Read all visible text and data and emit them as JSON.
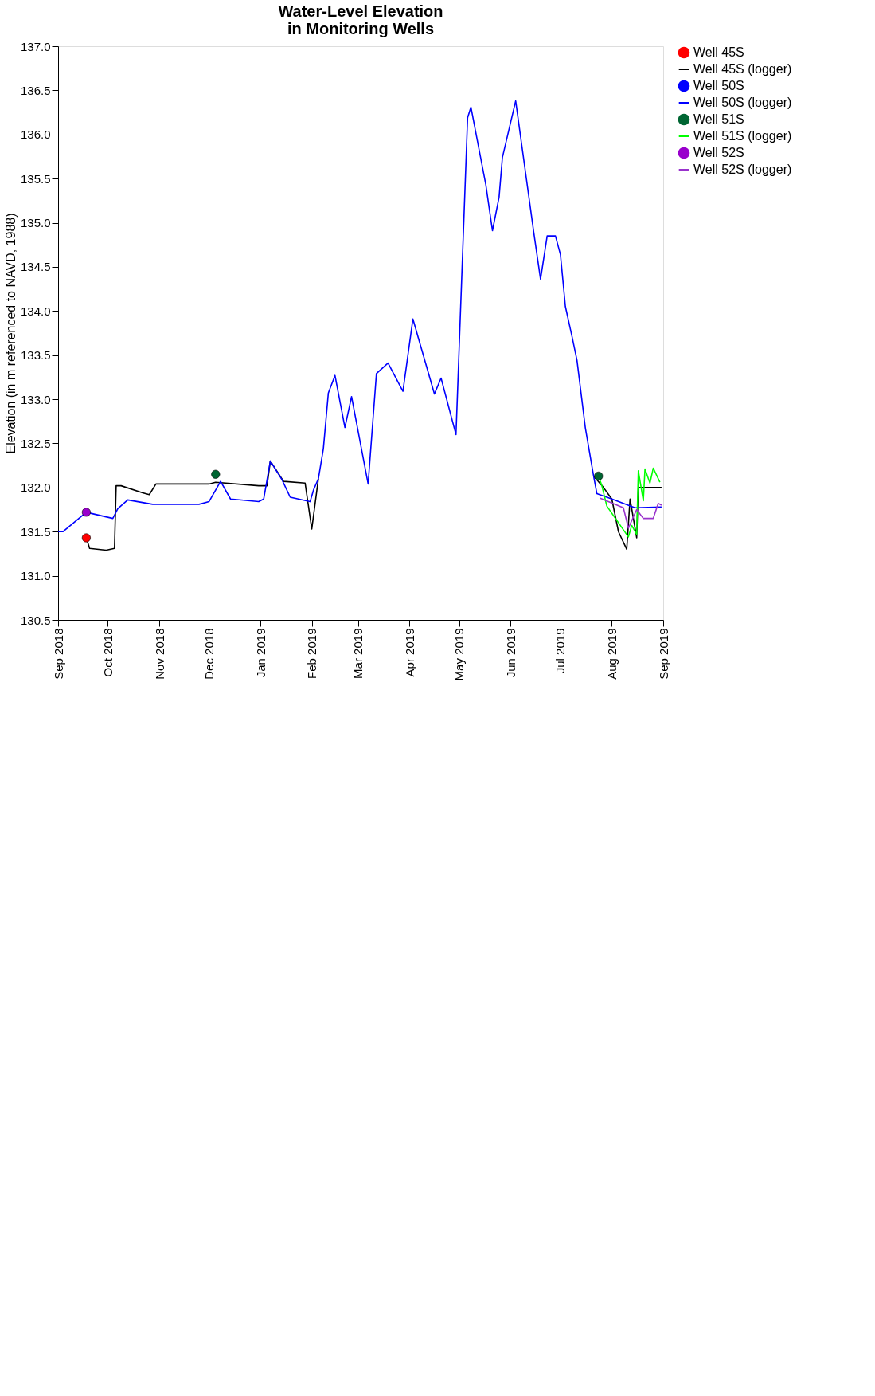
{
  "chart_data": {
    "type": "line",
    "title": "Water-Level Elevation\nin Monitoring Wells",
    "ylabel": "Elevation (in m referenced to NAVD, 1988)",
    "xlim": [
      "2018-09-01",
      "2019-09-01"
    ],
    "xticks": [
      {
        "value": "2018-09-01",
        "label": "Sep 2018"
      },
      {
        "value": "2018-10-01",
        "label": "Oct 2018"
      },
      {
        "value": "2018-11-01",
        "label": "Nov 2018"
      },
      {
        "value": "2018-12-01",
        "label": "Dec 2018"
      },
      {
        "value": "2019-01-01",
        "label": "Jan 2019"
      },
      {
        "value": "2019-02-01",
        "label": "Feb 2019"
      },
      {
        "value": "2019-03-01",
        "label": "Mar 2019"
      },
      {
        "value": "2019-04-01",
        "label": "Apr 2019"
      },
      {
        "value": "2019-05-01",
        "label": "May 2019"
      },
      {
        "value": "2019-06-01",
        "label": "Jun 2019"
      },
      {
        "value": "2019-07-01",
        "label": "Jul 2019"
      },
      {
        "value": "2019-08-01",
        "label": "Aug 2019"
      },
      {
        "value": "2019-09-01",
        "label": "Sep 2019"
      }
    ],
    "ylim": [
      130.5,
      137.0
    ],
    "yticks": [
      {
        "value": 130.5,
        "label": "130.5"
      },
      {
        "value": 131.0,
        "label": "131.0"
      },
      {
        "value": 131.5,
        "label": "131.5"
      },
      {
        "value": 132.0,
        "label": "132.0"
      },
      {
        "value": 132.5,
        "label": "132.5"
      },
      {
        "value": 133.0,
        "label": "133.0"
      },
      {
        "value": 133.5,
        "label": "133.5"
      },
      {
        "value": 134.0,
        "label": "134.0"
      },
      {
        "value": 134.5,
        "label": "134.5"
      },
      {
        "value": 135.0,
        "label": "135.0"
      },
      {
        "value": 135.5,
        "label": "135.5"
      },
      {
        "value": 136.0,
        "label": "136.0"
      },
      {
        "value": 136.5,
        "label": "136.5"
      },
      {
        "value": 137.0,
        "label": "137.0"
      }
    ],
    "grid": false,
    "legend": "right",
    "line_style": "solid",
    "series": [
      {
        "name": "Well 45S",
        "type": "scatter",
        "marker": "circle",
        "color": "#ff0000",
        "x": [
          "2018-09-18"
        ],
        "values": [
          131.43
        ]
      },
      {
        "name": "Well 45S (logger)",
        "type": "line",
        "color": "#000000",
        "x": [
          "2018-09-18",
          "2018-09-20",
          "2018-09-30",
          "2018-10-05",
          "2018-10-06",
          "2018-10-09",
          "2018-10-22",
          "2018-10-26",
          "2018-10-30",
          "2018-12-01",
          "2018-12-05",
          "2018-12-31",
          "2019-01-05",
          "2019-01-07",
          "2019-01-15",
          "2019-01-28",
          "2019-02-01",
          "2019-02-05",
          "2019-02-08",
          "2019-02-11",
          "2019-02-15",
          "2019-02-21",
          "2019-02-25",
          "2019-03-07",
          "2019-03-12",
          "2019-03-19",
          "2019-03-28",
          "2019-04-03",
          "2019-04-16",
          "2019-04-20",
          "2019-04-29",
          "2019-05-06",
          "2019-05-08",
          "2019-05-17",
          "2019-05-21",
          "2019-05-25",
          "2019-05-27",
          "2019-06-04",
          "2019-06-15",
          "2019-06-19",
          "2019-06-23",
          "2019-06-28",
          "2019-07-01",
          "2019-07-04",
          "2019-07-08",
          "2019-07-11",
          "2019-07-16",
          "2019-07-21",
          "2019-07-27",
          "2019-08-01",
          "2019-08-05",
          "2019-08-10",
          "2019-08-12",
          "2019-08-16",
          "2019-08-17",
          "2019-08-31"
        ],
        "values": [
          131.43,
          131.31,
          131.29,
          131.31,
          132.02,
          132.02,
          131.94,
          131.92,
          132.04,
          132.04,
          132.06,
          132.02,
          132.02,
          132.3,
          132.07,
          132.05,
          131.53,
          132.1,
          null,
          null,
          null,
          null,
          null,
          null,
          null,
          null,
          null,
          null,
          null,
          null,
          null,
          null,
          null,
          null,
          null,
          null,
          null,
          null,
          null,
          null,
          null,
          null,
          null,
          null,
          null,
          null,
          null,
          132.13,
          132.0,
          131.87,
          131.5,
          131.3,
          131.87,
          131.43,
          132.0,
          132.0
        ]
      },
      {
        "name": "Well 50S",
        "type": "scatter",
        "marker": "circle",
        "color": "#0000ff"
      },
      {
        "name": "Well 50S (logger)",
        "type": "line",
        "color": "#0000ff",
        "x": [
          "2018-09-01",
          "2018-09-04",
          "2018-09-18",
          "2018-10-04",
          "2018-10-07",
          "2018-10-13",
          "2018-10-28",
          "2018-11-25",
          "2018-12-01",
          "2018-12-08",
          "2018-12-14",
          "2018-12-31",
          "2019-01-03",
          "2019-01-07",
          "2019-01-14",
          "2019-01-19",
          "2019-01-31",
          "2019-02-02",
          "2019-02-05",
          "2019-02-08",
          "2019-02-11",
          "2019-02-15",
          "2019-02-21",
          "2019-02-25",
          "2019-03-07",
          "2019-03-12",
          "2019-03-19",
          "2019-03-28",
          "2019-04-03",
          "2019-04-16",
          "2019-04-20",
          "2019-04-29",
          "2019-05-06",
          "2019-05-08",
          "2019-05-17",
          "2019-05-21",
          "2019-05-25",
          "2019-05-27",
          "2019-06-04",
          "2019-06-15",
          "2019-06-19",
          "2019-06-23",
          "2019-06-28",
          "2019-07-01",
          "2019-07-04",
          "2019-07-08",
          "2019-07-11",
          "2019-07-16",
          "2019-07-21",
          "2019-07-23",
          "2019-08-01",
          "2019-08-15",
          "2019-08-31"
        ],
        "values": [
          131.5,
          131.5,
          131.72,
          131.65,
          131.76,
          131.86,
          131.81,
          131.81,
          131.84,
          132.07,
          131.87,
          131.84,
          131.87,
          132.3,
          132.09,
          131.89,
          131.84,
          131.97,
          132.1,
          132.44,
          133.07,
          133.27,
          132.68,
          133.03,
          132.04,
          133.29,
          133.41,
          133.09,
          133.91,
          133.06,
          133.24,
          132.6,
          136.19,
          136.31,
          135.43,
          134.91,
          135.29,
          135.74,
          136.38,
          134.88,
          134.36,
          134.85,
          134.85,
          134.64,
          134.05,
          133.71,
          133.44,
          132.68,
          132.13,
          131.93,
          131.87,
          131.77,
          131.78
        ]
      },
      {
        "name": "Well 51S",
        "type": "scatter",
        "marker": "circle",
        "color": "#006633",
        "x": [
          "2018-12-05",
          "2019-07-24"
        ],
        "values": [
          132.15,
          132.13
        ]
      },
      {
        "name": "Well 51S (logger)",
        "type": "line",
        "color": "#00ff00",
        "x": [
          "2019-07-24",
          "2019-07-26",
          "2019-07-29",
          "2019-08-11",
          "2019-08-13",
          "2019-08-16",
          "2019-08-17",
          "2019-08-20",
          "2019-08-21",
          "2019-08-24",
          "2019-08-26",
          "2019-08-30"
        ],
        "values": [
          132.13,
          132.02,
          131.79,
          131.44,
          131.57,
          131.47,
          132.19,
          131.85,
          132.21,
          132.05,
          132.22,
          132.06
        ]
      },
      {
        "name": "Well 52S",
        "type": "scatter",
        "marker": "circle",
        "color": "#9900cc",
        "x": [
          "2018-09-18"
        ],
        "values": [
          131.72
        ]
      },
      {
        "name": "Well 52S (logger)",
        "type": "line",
        "color": "#9933cc",
        "x": [
          "2019-07-25",
          "2019-08-08",
          "2019-08-11",
          "2019-08-16",
          "2019-08-20",
          "2019-08-26",
          "2019-08-29",
          "2019-08-31"
        ],
        "values": [
          131.88,
          131.77,
          131.54,
          131.75,
          131.65,
          131.65,
          131.82,
          131.8
        ]
      }
    ]
  }
}
